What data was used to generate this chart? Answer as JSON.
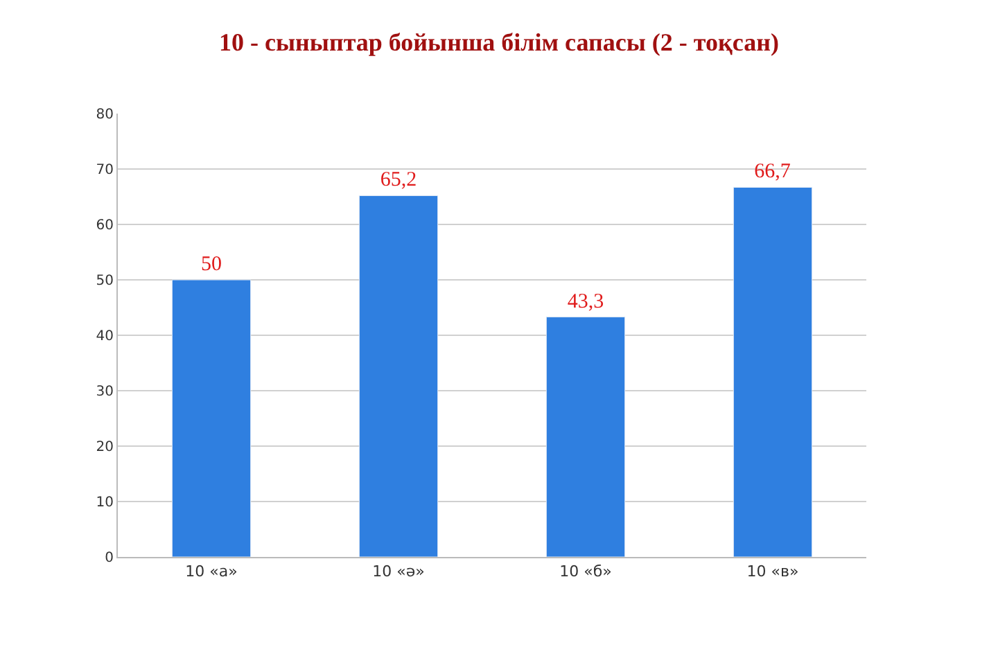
{
  "chart_data": {
    "type": "bar",
    "title": "10 - сыныптар бойынша білім сапасы (2 - тоқсан)",
    "categories": [
      "10 «а»",
      "10 «ә»",
      "10 «б»",
      "10 «в»"
    ],
    "values": [
      50,
      65.2,
      43.3,
      66.7
    ],
    "value_labels": [
      "50",
      "65,2",
      "43,3",
      "66,7"
    ],
    "color": "#2f7fe0",
    "ylim": [
      0,
      80
    ],
    "yticks": [
      0,
      10,
      20,
      30,
      40,
      50,
      60,
      70,
      80
    ],
    "grid": "y",
    "legend": false
  }
}
